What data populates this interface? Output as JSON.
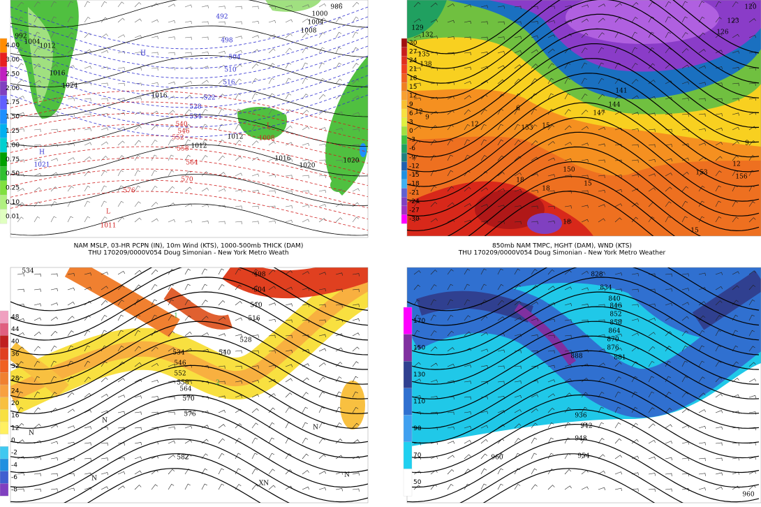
{
  "panels": [
    {
      "caption": [
        "NAM MSLP, 03-HR PCPN (IN), 10m Wind (KTS), 1000-500mb THICK (DAM)",
        "THU 170209/0000V054 Doug Simonian - New York Metro Weath"
      ],
      "colorbar": [
        {
          "label": "4.00",
          "color": "#ff8c00"
        },
        {
          "label": "3.00",
          "color": "#e82020"
        },
        {
          "label": "2.50",
          "color": "#c020c0"
        },
        {
          "label": "2.00",
          "color": "#8040c0"
        },
        {
          "label": "1.75",
          "color": "#6060ff"
        },
        {
          "label": "1.50",
          "color": "#1e90ff"
        },
        {
          "label": "1.25",
          "color": "#00b0f0"
        },
        {
          "label": "1.00",
          "color": "#00d0d0"
        },
        {
          "label": "0.75",
          "color": "#00a000"
        },
        {
          "label": "0.50",
          "color": "#30c030"
        },
        {
          "label": "0.25",
          "color": "#80e040"
        },
        {
          "label": "0.10",
          "color": "#b0f080"
        },
        {
          "label": "0.01",
          "color": "#e0ffc0"
        }
      ],
      "labels": [
        {
          "text": "H",
          "color": "#3030d0"
        },
        {
          "text": "492",
          "color": "#3030d0"
        },
        {
          "text": "498",
          "color": "#3030d0"
        },
        {
          "text": "504",
          "color": "#3030d0"
        },
        {
          "text": "510",
          "color": "#3030d0"
        },
        {
          "text": "516",
          "color": "#3030d0"
        },
        {
          "text": "522",
          "color": "#3030d0"
        },
        {
          "text": "528",
          "color": "#3030d0"
        },
        {
          "text": "534",
          "color": "#3030d0"
        },
        {
          "text": "H",
          "color": "#3030d0"
        },
        {
          "text": "1021",
          "color": "#3030d0"
        },
        {
          "text": "540",
          "color": "#d02020"
        },
        {
          "text": "546",
          "color": "#d02020"
        },
        {
          "text": "552",
          "color": "#d02020"
        },
        {
          "text": "558",
          "color": "#d02020"
        },
        {
          "text": "564",
          "color": "#d02020"
        },
        {
          "text": "570",
          "color": "#d02020"
        },
        {
          "text": "576",
          "color": "#d02020"
        },
        {
          "text": "L",
          "color": "#d02020"
        },
        {
          "text": "1008",
          "color": "#d02020"
        },
        {
          "text": "L",
          "color": "#d02020"
        },
        {
          "text": "1011",
          "color": "#d02020"
        },
        {
          "text": "1000",
          "color": "#000000"
        },
        {
          "text": "1004",
          "color": "#000000"
        },
        {
          "text": "1008",
          "color": "#000000"
        },
        {
          "text": "986",
          "color": "#000000"
        },
        {
          "text": "992",
          "color": "#000000"
        },
        {
          "text": "1004",
          "color": "#000000"
        },
        {
          "text": "1012",
          "color": "#000000"
        },
        {
          "text": "1016",
          "color": "#000000"
        },
        {
          "text": "1024",
          "color": "#000000"
        },
        {
          "text": "1016",
          "color": "#000000"
        },
        {
          "text": "1012",
          "color": "#000000"
        },
        {
          "text": "1012",
          "color": "#000000"
        },
        {
          "text": "1016",
          "color": "#000000"
        },
        {
          "text": "1020",
          "color": "#000000"
        },
        {
          "text": "1020",
          "color": "#000000"
        }
      ]
    },
    {
      "caption": [
        "850mb NAM TMPC, HGHT (DAM), WND (KTS)",
        "THU 170209/0000V054 Doug Simonian - New York Metro Weather"
      ],
      "colorbar": [
        {
          "label": "30",
          "color": "#a01010"
        },
        {
          "label": "27",
          "color": "#c81e1e"
        },
        {
          "label": "24",
          "color": "#e03020"
        },
        {
          "label": "21",
          "color": "#f04020"
        },
        {
          "label": "18",
          "color": "#f06020"
        },
        {
          "label": "15",
          "color": "#f08020"
        },
        {
          "label": "12",
          "color": "#f8a030"
        },
        {
          "label": "9",
          "color": "#f8c030"
        },
        {
          "label": "6",
          "color": "#f8e040"
        },
        {
          "label": "3",
          "color": "#e0f040"
        },
        {
          "label": "0",
          "color": "#a0e040"
        },
        {
          "label": "-3",
          "color": "#40c040"
        },
        {
          "label": "-6",
          "color": "#20a060"
        },
        {
          "label": "-9",
          "color": "#208080"
        },
        {
          "label": "-12",
          "color": "#2060b0"
        },
        {
          "label": "-15",
          "color": "#2090e0"
        },
        {
          "label": "-18",
          "color": "#40b0f0"
        },
        {
          "label": "-21",
          "color": "#6060d0"
        },
        {
          "label": "-24",
          "color": "#8040c0"
        },
        {
          "label": "-27",
          "color": "#a030c0"
        },
        {
          "label": "-30",
          "color": "#ff00ff"
        }
      ],
      "labels": [
        {
          "text": "120",
          "color": "#000000"
        },
        {
          "text": "123",
          "color": "#000000"
        },
        {
          "text": "126",
          "color": "#000000"
        },
        {
          "text": "129",
          "color": "#000000"
        },
        {
          "text": "132",
          "color": "#000000"
        },
        {
          "text": "135",
          "color": "#000000"
        },
        {
          "text": "138",
          "color": "#000000"
        },
        {
          "text": "141",
          "color": "#000000"
        },
        {
          "text": "144",
          "color": "#000000"
        },
        {
          "text": "147",
          "color": "#000000"
        },
        {
          "text": "150",
          "color": "#000000"
        },
        {
          "text": "153",
          "color": "#000000"
        },
        {
          "text": "153",
          "color": "#000000"
        },
        {
          "text": "156",
          "color": "#000000"
        },
        {
          "text": "12",
          "color": "#000000"
        },
        {
          "text": "9",
          "color": "#000000"
        },
        {
          "text": "12",
          "color": "#000000"
        },
        {
          "text": "6",
          "color": "#000000"
        },
        {
          "text": "15",
          "color": "#000000"
        },
        {
          "text": "15",
          "color": "#000000"
        },
        {
          "text": "15",
          "color": "#000000"
        },
        {
          "text": "18",
          "color": "#000000"
        },
        {
          "text": "18",
          "color": "#000000"
        },
        {
          "text": "18",
          "color": "#000000"
        },
        {
          "text": "9",
          "color": "#000000"
        },
        {
          "text": "12",
          "color": "#000000"
        }
      ]
    },
    {
      "colorbar": [
        {
          "label": "48",
          "color": "#f0a0c0"
        },
        {
          "label": "44",
          "color": "#e06080"
        },
        {
          "label": "40",
          "color": "#c02020"
        },
        {
          "label": "36",
          "color": "#e04020"
        },
        {
          "label": "32",
          "color": "#f06020"
        },
        {
          "label": "28",
          "color": "#f08030"
        },
        {
          "label": "24",
          "color": "#f8a040"
        },
        {
          "label": "20",
          "color": "#f8c040"
        },
        {
          "label": "16",
          "color": "#f8e040"
        },
        {
          "label": "12",
          "color": "#fff060"
        },
        {
          "label": "0",
          "color": "#ffffff"
        },
        {
          "label": "-2",
          "color": "#40c8f0"
        },
        {
          "label": "-4",
          "color": "#2090e0"
        },
        {
          "label": "-6",
          "color": "#4060d0"
        },
        {
          "label": "-8",
          "color": "#8040c0"
        }
      ],
      "labels": [
        {
          "text": "534",
          "color": "#000000"
        },
        {
          "text": "498",
          "color": "#000000"
        },
        {
          "text": "504",
          "color": "#000000"
        },
        {
          "text": "510",
          "color": "#000000"
        },
        {
          "text": "516",
          "color": "#000000"
        },
        {
          "text": "528",
          "color": "#000000"
        },
        {
          "text": "534",
          "color": "#000000"
        },
        {
          "text": "540",
          "color": "#000000"
        },
        {
          "text": "546",
          "color": "#000000"
        },
        {
          "text": "552",
          "color": "#000000"
        },
        {
          "text": "558",
          "color": "#000000"
        },
        {
          "text": "564",
          "color": "#000000"
        },
        {
          "text": "570",
          "color": "#000000"
        },
        {
          "text": "576",
          "color": "#000000"
        },
        {
          "text": "582",
          "color": "#000000"
        },
        {
          "text": "1",
          "color": "#30b040"
        },
        {
          "text": "2",
          "color": "#30b040"
        },
        {
          "text": "N",
          "color": "#000000"
        },
        {
          "text": "N",
          "color": "#000000"
        },
        {
          "text": "N",
          "color": "#000000"
        },
        {
          "text": "N",
          "color": "#000000"
        },
        {
          "text": "XN",
          "color": "#000000"
        },
        {
          "text": "N",
          "color": "#000000"
        }
      ]
    },
    {
      "colorbar": [
        {
          "label": "170",
          "color": "#ff00ff"
        },
        {
          "label": "150",
          "color": "#8030a0"
        },
        {
          "label": "130",
          "color": "#304090"
        },
        {
          "label": "110",
          "color": "#3070d0"
        },
        {
          "label": "90",
          "color": "#40a0f0"
        },
        {
          "label": "70",
          "color": "#20d0f0"
        },
        {
          "label": "50",
          "color": "#ffffff"
        }
      ],
      "labels": [
        {
          "text": "828",
          "color": "#000000"
        },
        {
          "text": "834",
          "color": "#000000"
        },
        {
          "text": "840",
          "color": "#000000"
        },
        {
          "text": "846",
          "color": "#000000"
        },
        {
          "text": "852",
          "color": "#000000"
        },
        {
          "text": "858",
          "color": "#000000"
        },
        {
          "text": "864",
          "color": "#000000"
        },
        {
          "text": "870",
          "color": "#000000"
        },
        {
          "text": "876",
          "color": "#000000"
        },
        {
          "text": "881",
          "color": "#000000"
        },
        {
          "text": "888",
          "color": "#000000"
        },
        {
          "text": "936",
          "color": "#000000"
        },
        {
          "text": "942",
          "color": "#000000"
        },
        {
          "text": "948",
          "color": "#000000"
        },
        {
          "text": "954",
          "color": "#000000"
        },
        {
          "text": "960",
          "color": "#000000"
        },
        {
          "text": "960",
          "color": "#000000"
        }
      ]
    }
  ]
}
